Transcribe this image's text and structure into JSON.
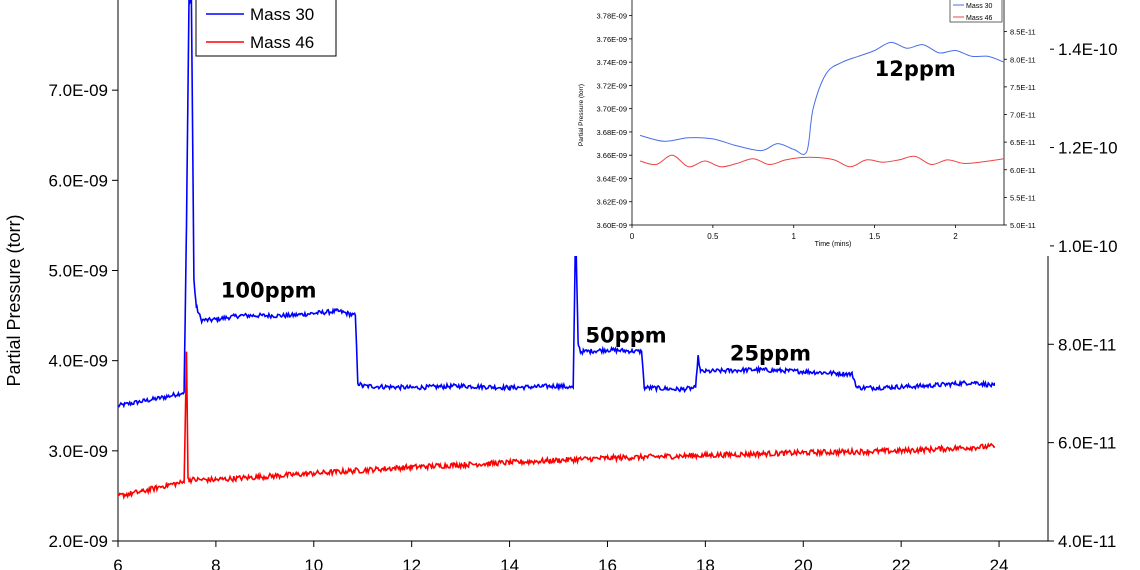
{
  "chart_data": [
    {
      "id": "main",
      "type": "line",
      "title": "",
      "xlabel": "",
      "ylabel": "Partial Pressure (torr)",
      "xlim": [
        6,
        25
      ],
      "ylim": [
        2e-09,
        8e-09
      ],
      "y2lim": [
        4e-11,
        1.5e-10
      ],
      "x_ticks": [
        6,
        8,
        10,
        12,
        14,
        16,
        18,
        20,
        22,
        24
      ],
      "y_ticks": [
        "2.0E-09",
        "3.0E-09",
        "4.0E-09",
        "5.0E-09",
        "6.0E-09",
        "7.0E-09"
      ],
      "y_tick_values": [
        2e-09,
        3e-09,
        4e-09,
        5e-09,
        6e-09,
        7e-09
      ],
      "y2_ticks": [
        "4.0E-11",
        "6.0E-11",
        "8.0E-11",
        "1.0E-10",
        "1.2E-10",
        "1.4E-10"
      ],
      "y2_tick_values": [
        4e-11,
        6e-11,
        8e-11,
        1e-10,
        1.2e-10,
        1.4e-10
      ],
      "grid": false,
      "legend_position": "top-left",
      "series": [
        {
          "name": "Mass 30",
          "color": "#0000ff",
          "axis": "left",
          "x": [
            6.0,
            6.5,
            7.0,
            7.35,
            7.4,
            7.45,
            7.5,
            7.55,
            7.6,
            7.7,
            7.9,
            8.5,
            9.5,
            10.5,
            10.85,
            10.9,
            11.0,
            12.0,
            13.0,
            14.0,
            15.0,
            15.3,
            15.35,
            15.4,
            15.45,
            15.5,
            16.0,
            16.7,
            16.75,
            16.85,
            17.5,
            17.8,
            17.85,
            17.9,
            18.0,
            19.0,
            20.0,
            21.0,
            21.1,
            21.5,
            22.5,
            23.5,
            23.9
          ],
          "y": [
            3.5e-09,
            3.55e-09,
            3.6e-09,
            3.65e-09,
            5.5e-09,
            8e-09,
            8e-09,
            4.9e-09,
            4.6e-09,
            4.45e-09,
            4.45e-09,
            4.5e-09,
            4.5e-09,
            4.55e-09,
            4.5e-09,
            3.75e-09,
            3.72e-09,
            3.7e-09,
            3.72e-09,
            3.7e-09,
            3.72e-09,
            3.7e-09,
            5.5e-09,
            4.2e-09,
            4.1e-09,
            4.1e-09,
            4.12e-09,
            4.1e-09,
            3.7e-09,
            3.7e-09,
            3.68e-09,
            3.7e-09,
            4.05e-09,
            3.88e-09,
            3.88e-09,
            3.9e-09,
            3.88e-09,
            3.85e-09,
            3.7e-09,
            3.7e-09,
            3.72e-09,
            3.76e-09,
            3.72e-09
          ],
          "noise": 2.5e-11
        },
        {
          "name": "Mass 46",
          "color": "#ff0000",
          "axis": "left",
          "x": [
            6.0,
            6.5,
            7.0,
            7.35,
            7.4,
            7.43,
            7.45,
            8.0,
            10.0,
            12.0,
            14.0,
            16.0,
            18.0,
            20.0,
            22.0,
            23.9
          ],
          "y": [
            2.5e-09,
            2.55e-09,
            2.62e-09,
            2.65e-09,
            4.1e-09,
            2.7e-09,
            2.68e-09,
            2.68e-09,
            2.75e-09,
            2.82e-09,
            2.87e-09,
            2.92e-09,
            2.95e-09,
            2.98e-09,
            3e-09,
            3.05e-09
          ],
          "noise": 3e-11
        }
      ],
      "annotations": [
        {
          "text": "100ppm",
          "x": 8.1,
          "y": 4.7e-09
        },
        {
          "text": "50ppm",
          "x": 15.55,
          "y": 4.2e-09
        },
        {
          "text": "25ppm",
          "x": 18.5,
          "y": 4e-09
        }
      ]
    },
    {
      "id": "inset",
      "type": "line",
      "title": "",
      "xlabel": "Time (mins)",
      "ylabel": "Partial Pressure (torr)",
      "xlim": [
        0,
        2.3
      ],
      "ylim": [
        3.6e-09,
        3.79e-09
      ],
      "y2lim": [
        5e-11,
        9e-11
      ],
      "x_ticks": [
        0,
        0.5,
        1,
        1.5,
        2
      ],
      "x_tick_labels": [
        "0",
        "0.5",
        "1",
        "1.5",
        "2"
      ],
      "y_ticks": [
        "3.60E-09",
        "3.62E-09",
        "3.64E-09",
        "3.66E-09",
        "3.68E-09",
        "3.70E-09",
        "3.72E-09",
        "3.74E-09",
        "3.76E-09",
        "3.78E-09"
      ],
      "y_tick_values": [
        3.6e-09,
        3.62e-09,
        3.64e-09,
        3.66e-09,
        3.68e-09,
        3.7e-09,
        3.72e-09,
        3.74e-09,
        3.76e-09,
        3.78e-09
      ],
      "y2_ticks": [
        "5.0E-11",
        "5.5E-11",
        "6.0E-11",
        "6.5E-11",
        "7.0E-11",
        "7.5E-11",
        "8.0E-11",
        "8.5E-11"
      ],
      "y2_tick_values": [
        5e-11,
        5.5e-11,
        6e-11,
        6.5e-11,
        7e-11,
        7.5e-11,
        8e-11,
        8.5e-11
      ],
      "grid": false,
      "legend_position": "top-right",
      "series": [
        {
          "name": "Mass 30",
          "color": "#4a6ee8",
          "axis": "left",
          "x": [
            0.05,
            0.2,
            0.35,
            0.5,
            0.65,
            0.8,
            0.9,
            1.0,
            1.08,
            1.12,
            1.2,
            1.3,
            1.4,
            1.5,
            1.6,
            1.7,
            1.8,
            1.9,
            2.0,
            2.1,
            2.2,
            2.3
          ],
          "y": [
            3.677e-09,
            3.672e-09,
            3.675e-09,
            3.674e-09,
            3.668e-09,
            3.664e-09,
            3.67e-09,
            3.665e-09,
            3.663e-09,
            3.7e-09,
            3.73e-09,
            3.74e-09,
            3.745e-09,
            3.75e-09,
            3.757e-09,
            3.752e-09,
            3.755e-09,
            3.748e-09,
            3.75e-09,
            3.745e-09,
            3.745e-09,
            3.74e-09
          ],
          "noise": 0
        },
        {
          "name": "Mass 46",
          "color": "#ee4444",
          "axis": "left",
          "x": [
            0.05,
            0.15,
            0.25,
            0.35,
            0.45,
            0.55,
            0.65,
            0.75,
            0.85,
            0.95,
            1.05,
            1.15,
            1.25,
            1.35,
            1.45,
            1.55,
            1.65,
            1.75,
            1.85,
            1.95,
            2.05,
            2.15,
            2.3
          ],
          "y": [
            3.655e-09,
            3.652e-09,
            3.66e-09,
            3.65e-09,
            3.655e-09,
            3.65e-09,
            3.653e-09,
            3.657e-09,
            3.652e-09,
            3.656e-09,
            3.658e-09,
            3.658e-09,
            3.656e-09,
            3.65e-09,
            3.656e-09,
            3.654e-09,
            3.656e-09,
            3.659e-09,
            3.652e-09,
            3.656e-09,
            3.653e-09,
            3.654e-09,
            3.657e-09
          ],
          "noise": 0
        }
      ],
      "annotations": [
        {
          "text": "12ppm",
          "x": 1.5,
          "y": 3.728e-09
        }
      ]
    }
  ]
}
